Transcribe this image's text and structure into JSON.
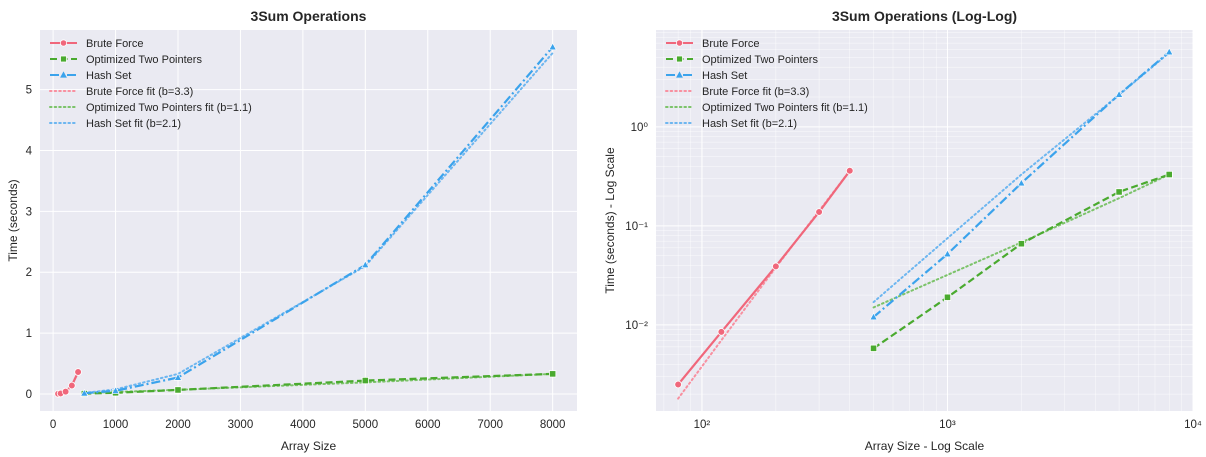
{
  "chart_data": [
    {
      "type": "line",
      "title": "3Sum Operations",
      "xlabel": "Array Size",
      "ylabel": "Time (seconds)",
      "xscale": "linear",
      "yscale": "linear",
      "xlim": [
        -210,
        8390
      ],
      "ylim": [
        -0.28,
        5.98
      ],
      "xticks": [
        0,
        1000,
        2000,
        3000,
        4000,
        5000,
        6000,
        7000,
        8000
      ],
      "xtick_labels": [
        "0",
        "1000",
        "2000",
        "3000",
        "4000",
        "5000",
        "6000",
        "7000",
        "8000"
      ],
      "yticks": [
        0,
        1,
        2,
        3,
        4,
        5
      ],
      "ytick_labels": [
        "0",
        "1",
        "2",
        "3",
        "4",
        "5"
      ],
      "grid": true,
      "legend_position": "top-left",
      "series": [
        {
          "name": "Brute Force",
          "color": "#f0677b",
          "style": "solid",
          "marker": "circle",
          "x": [
            80,
            120,
            200,
            300,
            400
          ],
          "y": [
            0.0025,
            0.0085,
            0.039,
            0.138,
            0.36
          ]
        },
        {
          "name": "Optimized Two Pointers",
          "color": "#4aaa2f",
          "style": "dashed",
          "marker": "square",
          "x": [
            500,
            1000,
            2000,
            5000,
            8000
          ],
          "y": [
            0.0058,
            0.019,
            0.066,
            0.22,
            0.33
          ]
        },
        {
          "name": "Hash Set",
          "color": "#3ba3ec",
          "style": "dashdot",
          "marker": "triangle",
          "x": [
            500,
            1000,
            2000,
            5000,
            8000
          ],
          "y": [
            0.012,
            0.052,
            0.27,
            2.12,
            5.7
          ]
        },
        {
          "name": "Brute Force fit (b=3.3)",
          "color": "#f890a0",
          "style": "dotted",
          "marker": "none",
          "x": [
            80,
            120,
            200,
            300,
            400
          ],
          "y": [
            0.0018,
            0.007,
            0.038,
            0.142,
            0.36
          ]
        },
        {
          "name": "Optimized Two Pointers fit (b=1.1)",
          "color": "#7cc36a",
          "style": "dotted",
          "marker": "none",
          "x": [
            500,
            1000,
            2000,
            5000,
            8000
          ],
          "y": [
            0.015,
            0.032,
            0.068,
            0.19,
            0.33
          ]
        },
        {
          "name": "Hash Set fit (b=2.1)",
          "color": "#6db6f0",
          "style": "dotted",
          "marker": "none",
          "x": [
            500,
            1000,
            2000,
            5000,
            8000
          ],
          "y": [
            0.017,
            0.075,
            0.33,
            2.1,
            5.6
          ]
        }
      ]
    },
    {
      "type": "line",
      "title": "3Sum Operations (Log-Log)",
      "xlabel": "Array Size - Log Scale",
      "ylabel": "Time (seconds) - Log Scale",
      "xscale": "log",
      "yscale": "log",
      "xlim": [
        65,
        10000
      ],
      "ylim": [
        0.00135,
        9.5
      ],
      "xticks": [
        100,
        1000,
        10000
      ],
      "xtick_labels": [
        "10²",
        "10³",
        "10⁴"
      ],
      "yticks": [
        0.01,
        0.1,
        1
      ],
      "ytick_labels": [
        "10⁻²",
        "10⁻¹",
        "10⁰"
      ],
      "grid": true,
      "legend_position": "top-left",
      "series": [
        {
          "name": "Brute Force",
          "color": "#f0677b",
          "style": "solid",
          "marker": "circle",
          "x": [
            80,
            120,
            200,
            300,
            400
          ],
          "y": [
            0.0025,
            0.0085,
            0.039,
            0.138,
            0.36
          ]
        },
        {
          "name": "Optimized Two Pointers",
          "color": "#4aaa2f",
          "style": "dashed",
          "marker": "square",
          "x": [
            500,
            1000,
            2000,
            5000,
            8000
          ],
          "y": [
            0.0058,
            0.019,
            0.066,
            0.22,
            0.33
          ]
        },
        {
          "name": "Hash Set",
          "color": "#3ba3ec",
          "style": "dashdot",
          "marker": "triangle",
          "x": [
            500,
            1000,
            2000,
            5000,
            8000
          ],
          "y": [
            0.012,
            0.052,
            0.27,
            2.12,
            5.7
          ]
        },
        {
          "name": "Brute Force fit (b=3.3)",
          "color": "#f890a0",
          "style": "dotted",
          "marker": "none",
          "x": [
            80,
            120,
            200,
            300,
            400
          ],
          "y": [
            0.0018,
            0.007,
            0.038,
            0.142,
            0.36
          ]
        },
        {
          "name": "Optimized Two Pointers fit (b=1.1)",
          "color": "#7cc36a",
          "style": "dotted",
          "marker": "none",
          "x": [
            500,
            1000,
            2000,
            5000,
            8000
          ],
          "y": [
            0.015,
            0.032,
            0.068,
            0.19,
            0.33
          ]
        },
        {
          "name": "Hash Set fit (b=2.1)",
          "color": "#6db6f0",
          "style": "dotted",
          "marker": "none",
          "x": [
            500,
            1000,
            2000,
            5000,
            8000
          ],
          "y": [
            0.017,
            0.075,
            0.33,
            2.1,
            5.6
          ]
        }
      ]
    }
  ],
  "colors": {
    "plot_background": "#eaeaf2",
    "grid": "#ffffff"
  }
}
